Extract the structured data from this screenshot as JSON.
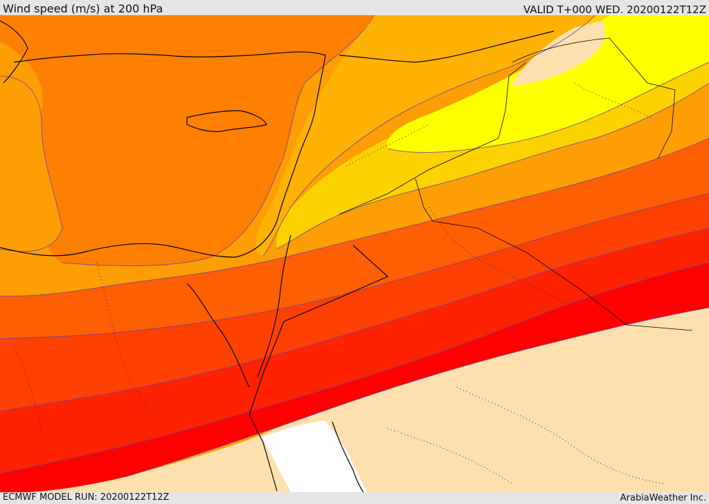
{
  "header": {
    "title": "Wind speed (m/s) at 200 hPa",
    "valid": "VALID T+000 WED. 20200122T12Z"
  },
  "footer": {
    "model_run": "ECMWF MODEL RUN: 20200122T12Z",
    "brand": "ArabiaWeather Inc."
  },
  "map": {
    "field": "wind speed at 200 hPa",
    "colors": {
      "lowest": "#fde0ad",
      "land_white": "#ffffff",
      "band_orange_light": "#fe9e05",
      "band_orange": "#fe7f02",
      "band_orange_mid": "#feb205",
      "band_gold": "#fed100",
      "band_yellow": "#ffff00",
      "band_orange_deep": "#fe5f02",
      "band_red_orange": "#fe4102",
      "band_red_light": "#fe2200",
      "band_red": "#ff0000",
      "coastline": "#000000",
      "contour": "#6b3fa0",
      "border": "#000000"
    }
  }
}
